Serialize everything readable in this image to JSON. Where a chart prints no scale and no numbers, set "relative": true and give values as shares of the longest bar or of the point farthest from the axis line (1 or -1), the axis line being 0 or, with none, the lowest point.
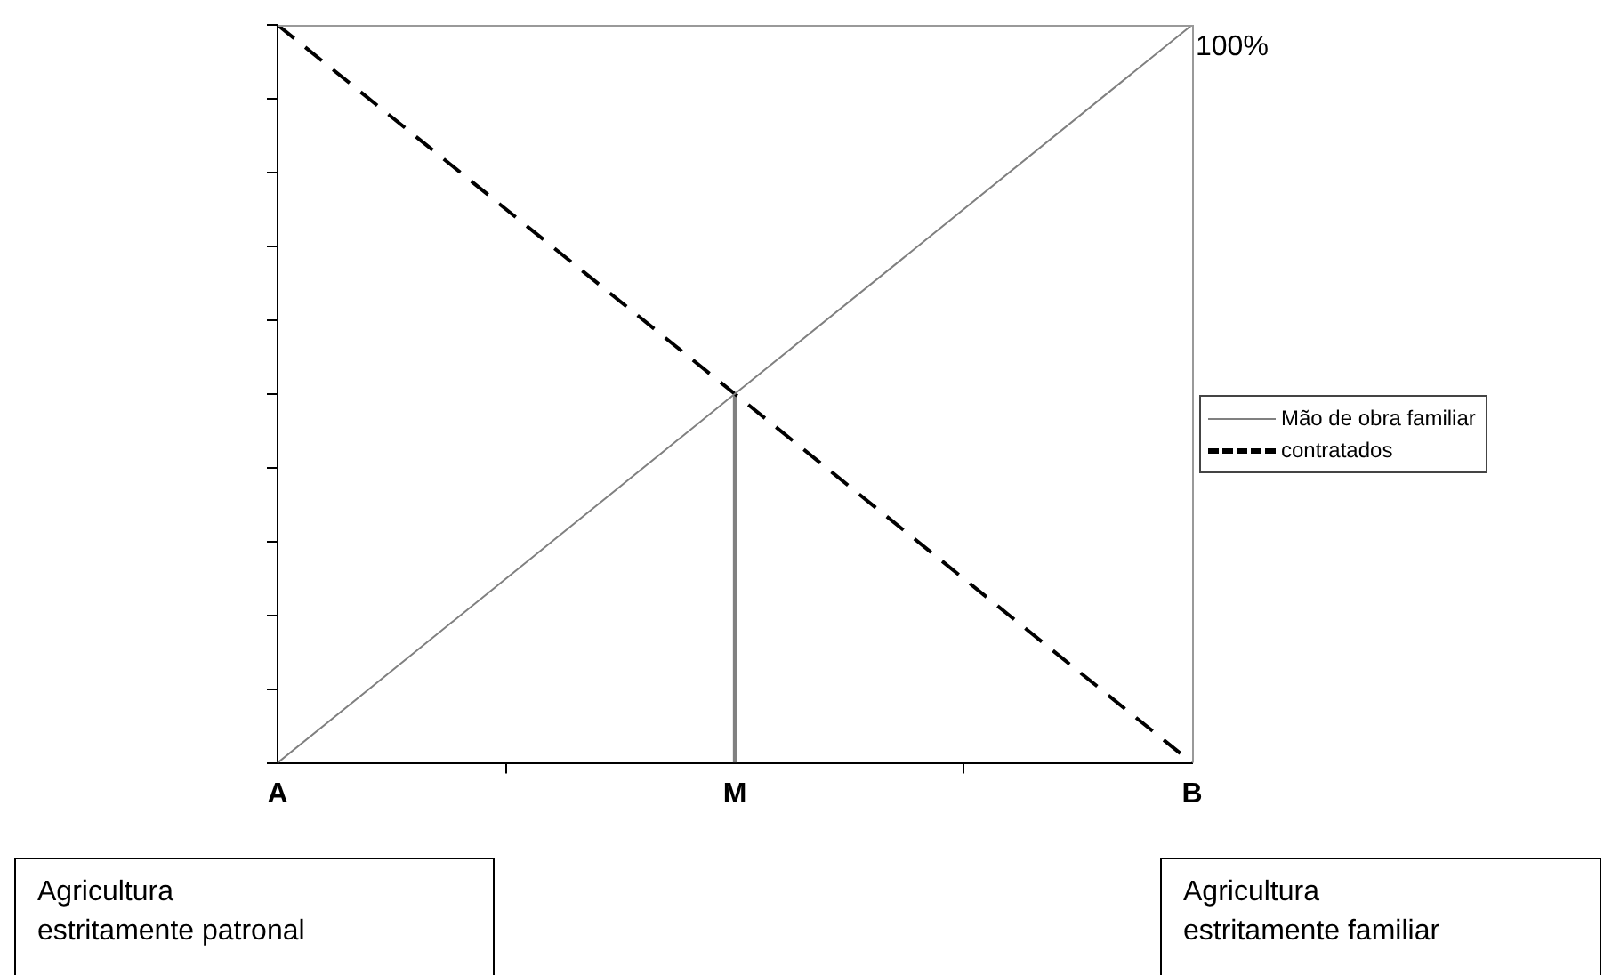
{
  "chart_data": {
    "type": "line",
    "relative": true,
    "categories": [
      "A",
      "M",
      "B"
    ],
    "series": [
      {
        "name": "Mão de obra familiar",
        "color": "#808080",
        "line_style": "solid",
        "values": [
          0,
          0.5,
          1
        ]
      },
      {
        "name": "contratados",
        "color": "#000000",
        "line_style": "dashed",
        "values": [
          1,
          0.5,
          0
        ]
      },
      {
        "type": "bar",
        "color": "#808080",
        "values": [
          null,
          0.5,
          null
        ]
      }
    ],
    "legend": "right",
    "grid": false,
    "marker": "none",
    "annotations": [
      "100%",
      "Agricultura\nestritamente patronal",
      "Agricultura\nestritamente familiar"
    ]
  }
}
